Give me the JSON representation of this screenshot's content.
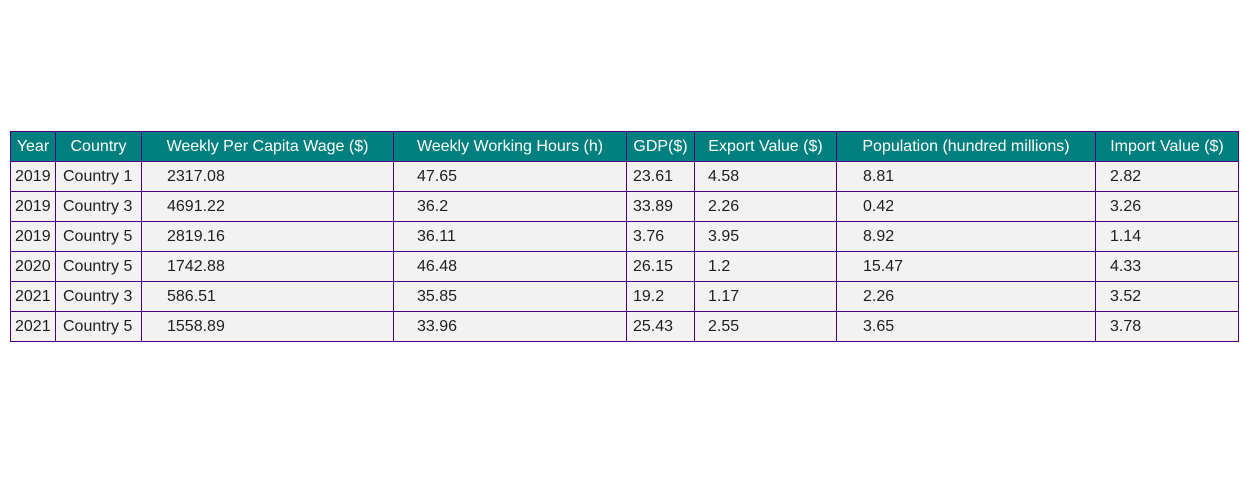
{
  "chart_data": {
    "type": "table",
    "columns": [
      "Year",
      "Country",
      "Weekly Per Capita Wage ($)",
      "Weekly Working Hours (h)",
      "GDP($)",
      "Export Value ($)",
      "Population (hundred millions)",
      "Import Value ($)"
    ],
    "rows": [
      [
        "2019",
        "Country 1",
        "2317.08",
        "47.65",
        "23.61",
        "4.58",
        "8.81",
        "2.82"
      ],
      [
        "2019",
        "Country 3",
        "4691.22",
        "36.2",
        "33.89",
        "2.26",
        "0.42",
        "3.26"
      ],
      [
        "2019",
        "Country 5",
        "2819.16",
        "36.11",
        "3.76",
        "3.95",
        "8.92",
        "1.14"
      ],
      [
        "2020",
        "Country 5",
        "1742.88",
        "46.48",
        "26.15",
        "1.2",
        "15.47",
        "4.33"
      ],
      [
        "2021",
        "Country 3",
        "586.51",
        "35.85",
        "19.2",
        "1.17",
        "2.26",
        "3.52"
      ],
      [
        "2021",
        "Country 5",
        "1558.89",
        "33.96",
        "25.43",
        "2.55",
        "3.65",
        "3.78"
      ]
    ],
    "colors": {
      "header_background": "#007f7f",
      "header_text": "#ffffff",
      "cell_background": "#f2f2f2",
      "border": "#4b0082"
    }
  }
}
